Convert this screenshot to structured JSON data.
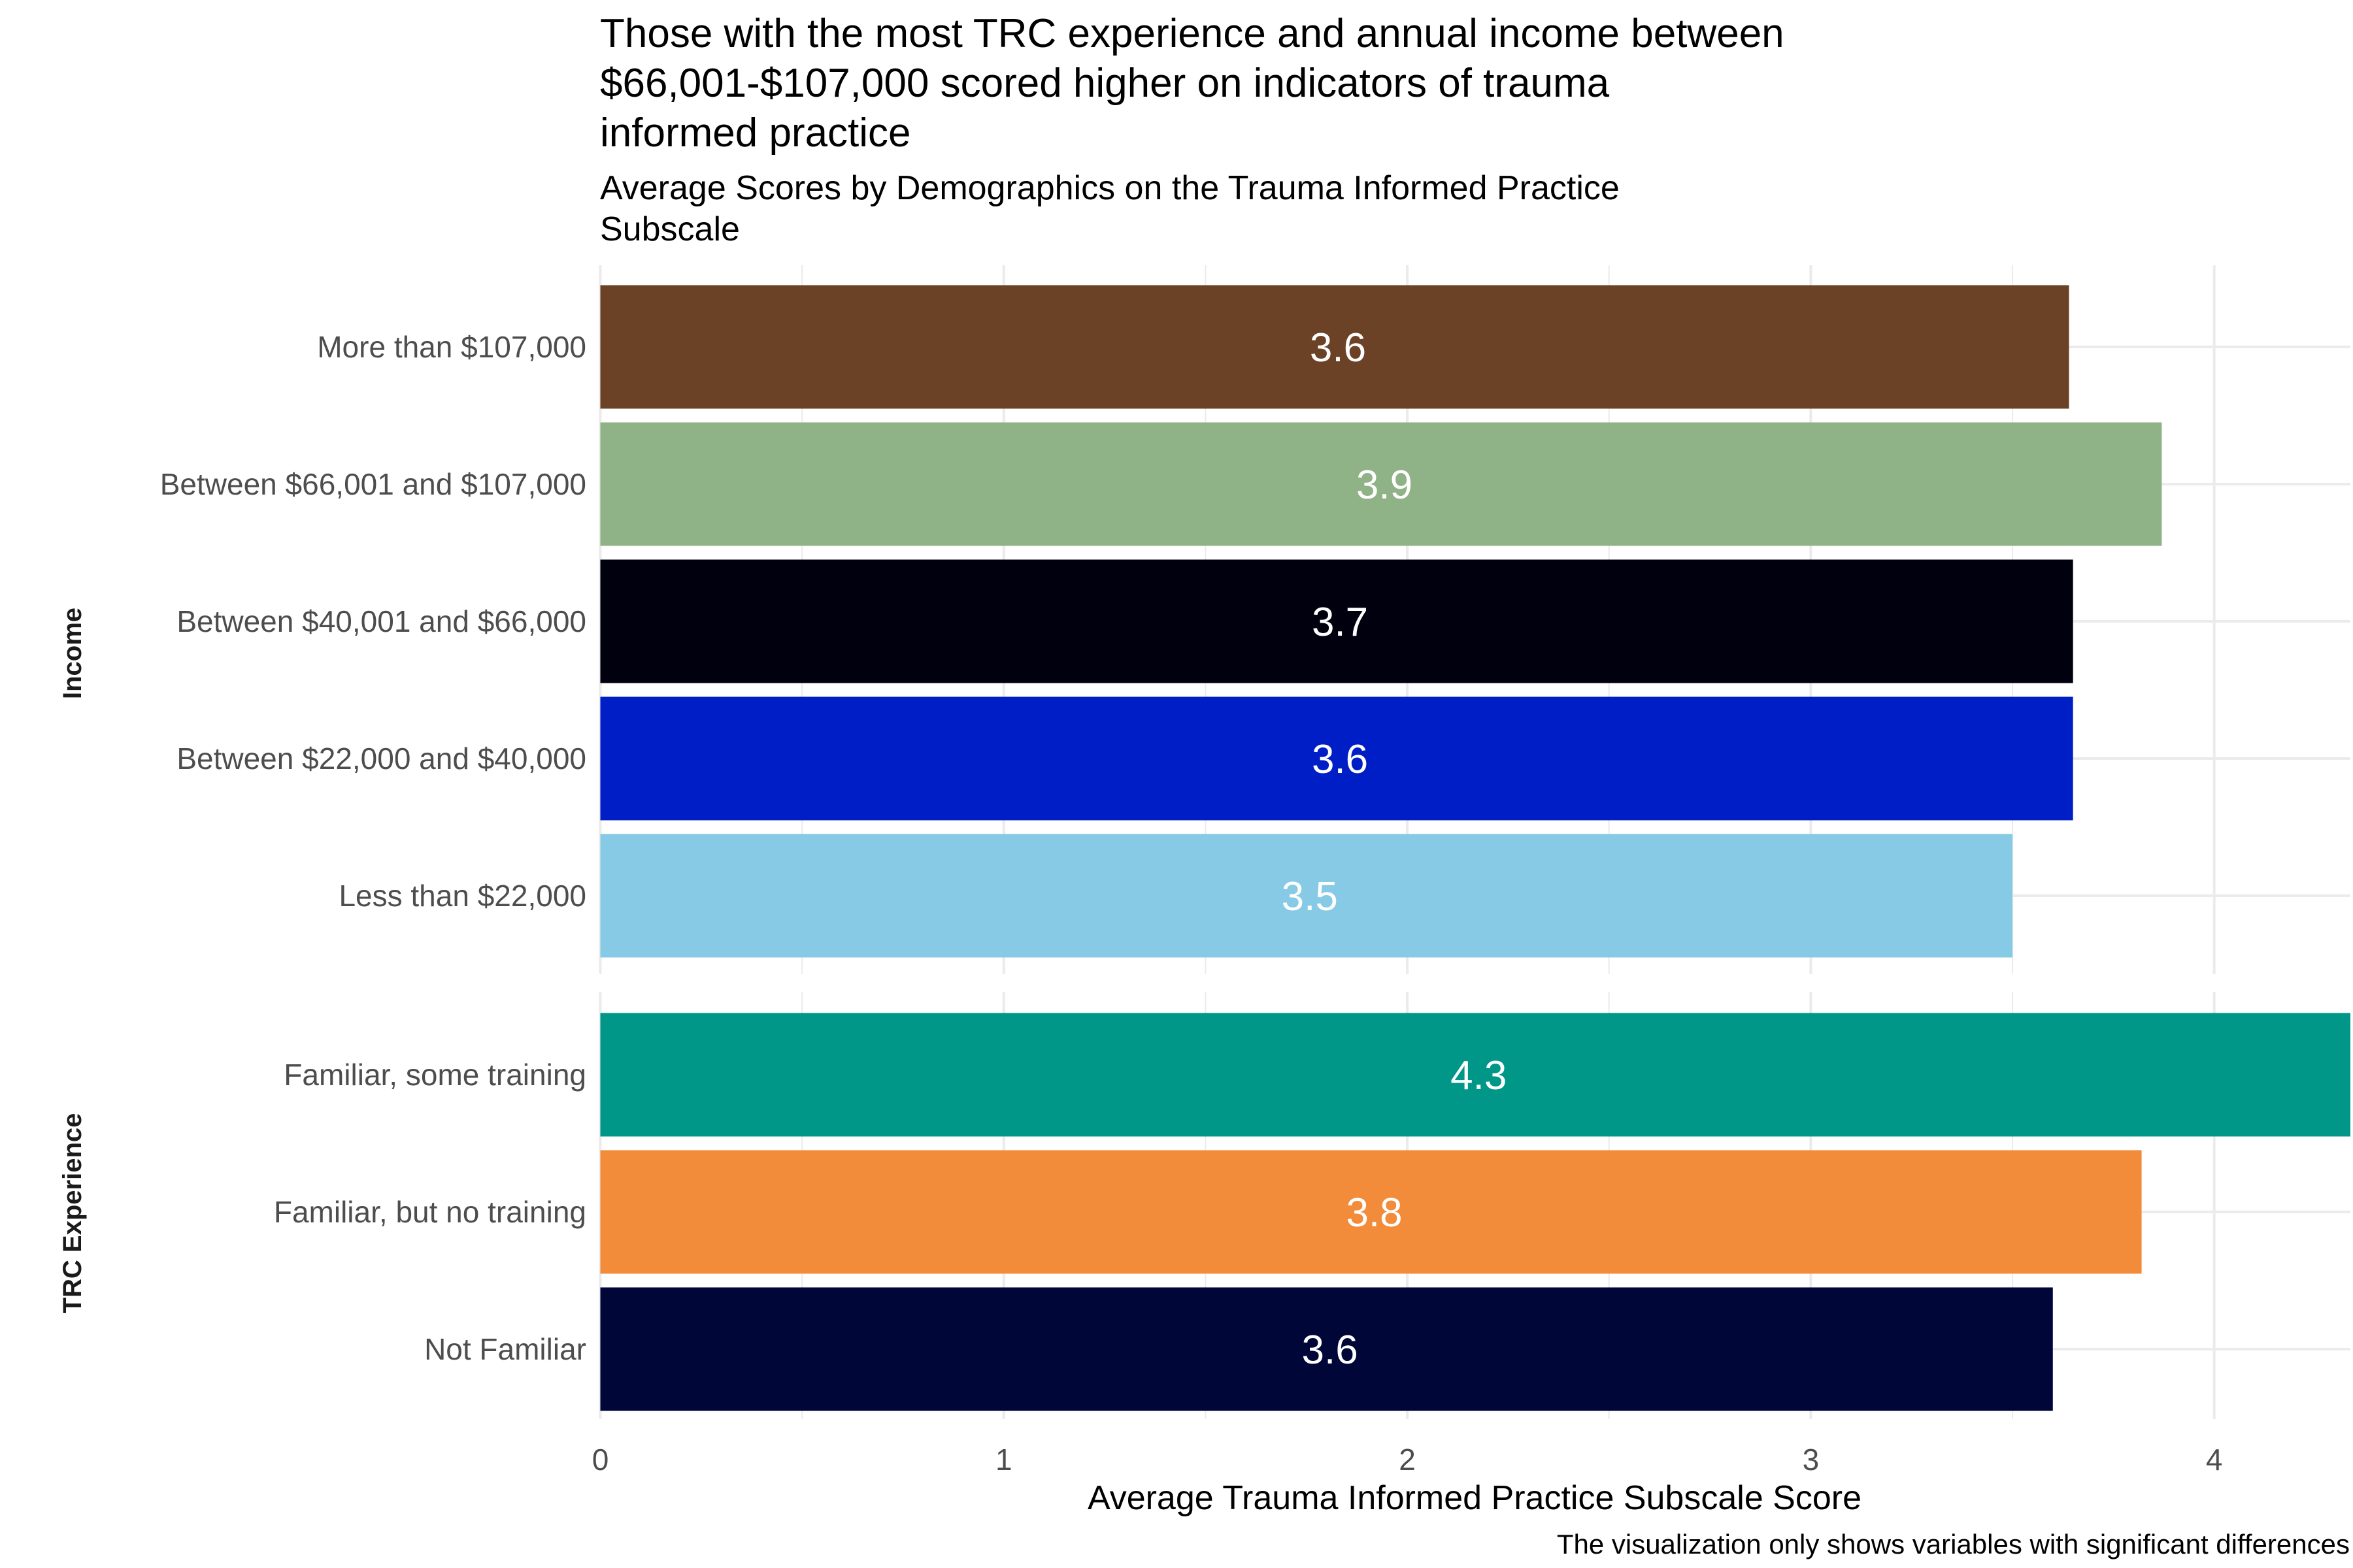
{
  "chart_data": {
    "type": "bar",
    "orientation": "horizontal",
    "title_lines": [
      "Those with the most TRC experience and annual income between",
      "$66,001-$107,000 scored higher on indicators of trauma",
      "informed practice"
    ],
    "subtitle_lines": [
      "Average Scores by Demographics on the Trauma Informed Practice",
      "Subscale"
    ],
    "xlabel": "Average Trauma Informed Practice Subscale Score",
    "ylabel": "",
    "caption": "The visualization only shows variables with significant differences",
    "xlim": [
      0,
      4.34
    ],
    "x_ticks": [
      0,
      1,
      2,
      3,
      4
    ],
    "x_tick_labels": [
      "0",
      "1",
      "2",
      "3",
      "4"
    ],
    "grid": true,
    "legend": "none",
    "facets": [
      {
        "name": "Income",
        "categories": [
          {
            "label": "More than $107,000",
            "value": 3.64,
            "data_label": "3.6",
            "color": "#6B4226"
          },
          {
            "label": "Between $66,001 and $107,000",
            "value": 3.87,
            "data_label": "3.9",
            "color": "#8FB287"
          },
          {
            "label": "Between $40,001 and $66,000",
            "value": 3.65,
            "data_label": "3.7",
            "color": "#00000F"
          },
          {
            "label": "Between $22,000 and $40,000",
            "value": 3.65,
            "data_label": "3.6",
            "color": "#001EC5"
          },
          {
            "label": "Less than $22,000",
            "value": 3.5,
            "data_label": "3.5",
            "color": "#87CAE5"
          }
        ]
      },
      {
        "name": "TRC Experience",
        "categories": [
          {
            "label": "Familiar, some training",
            "value": 4.34,
            "data_label": "4.3",
            "color": "#009688"
          },
          {
            "label": "Familiar, but no training",
            "value": 3.82,
            "data_label": "3.8",
            "color": "#F28B3A"
          },
          {
            "label": "Not Familiar",
            "value": 3.6,
            "data_label": "3.6",
            "color": "#000638"
          }
        ]
      }
    ]
  }
}
